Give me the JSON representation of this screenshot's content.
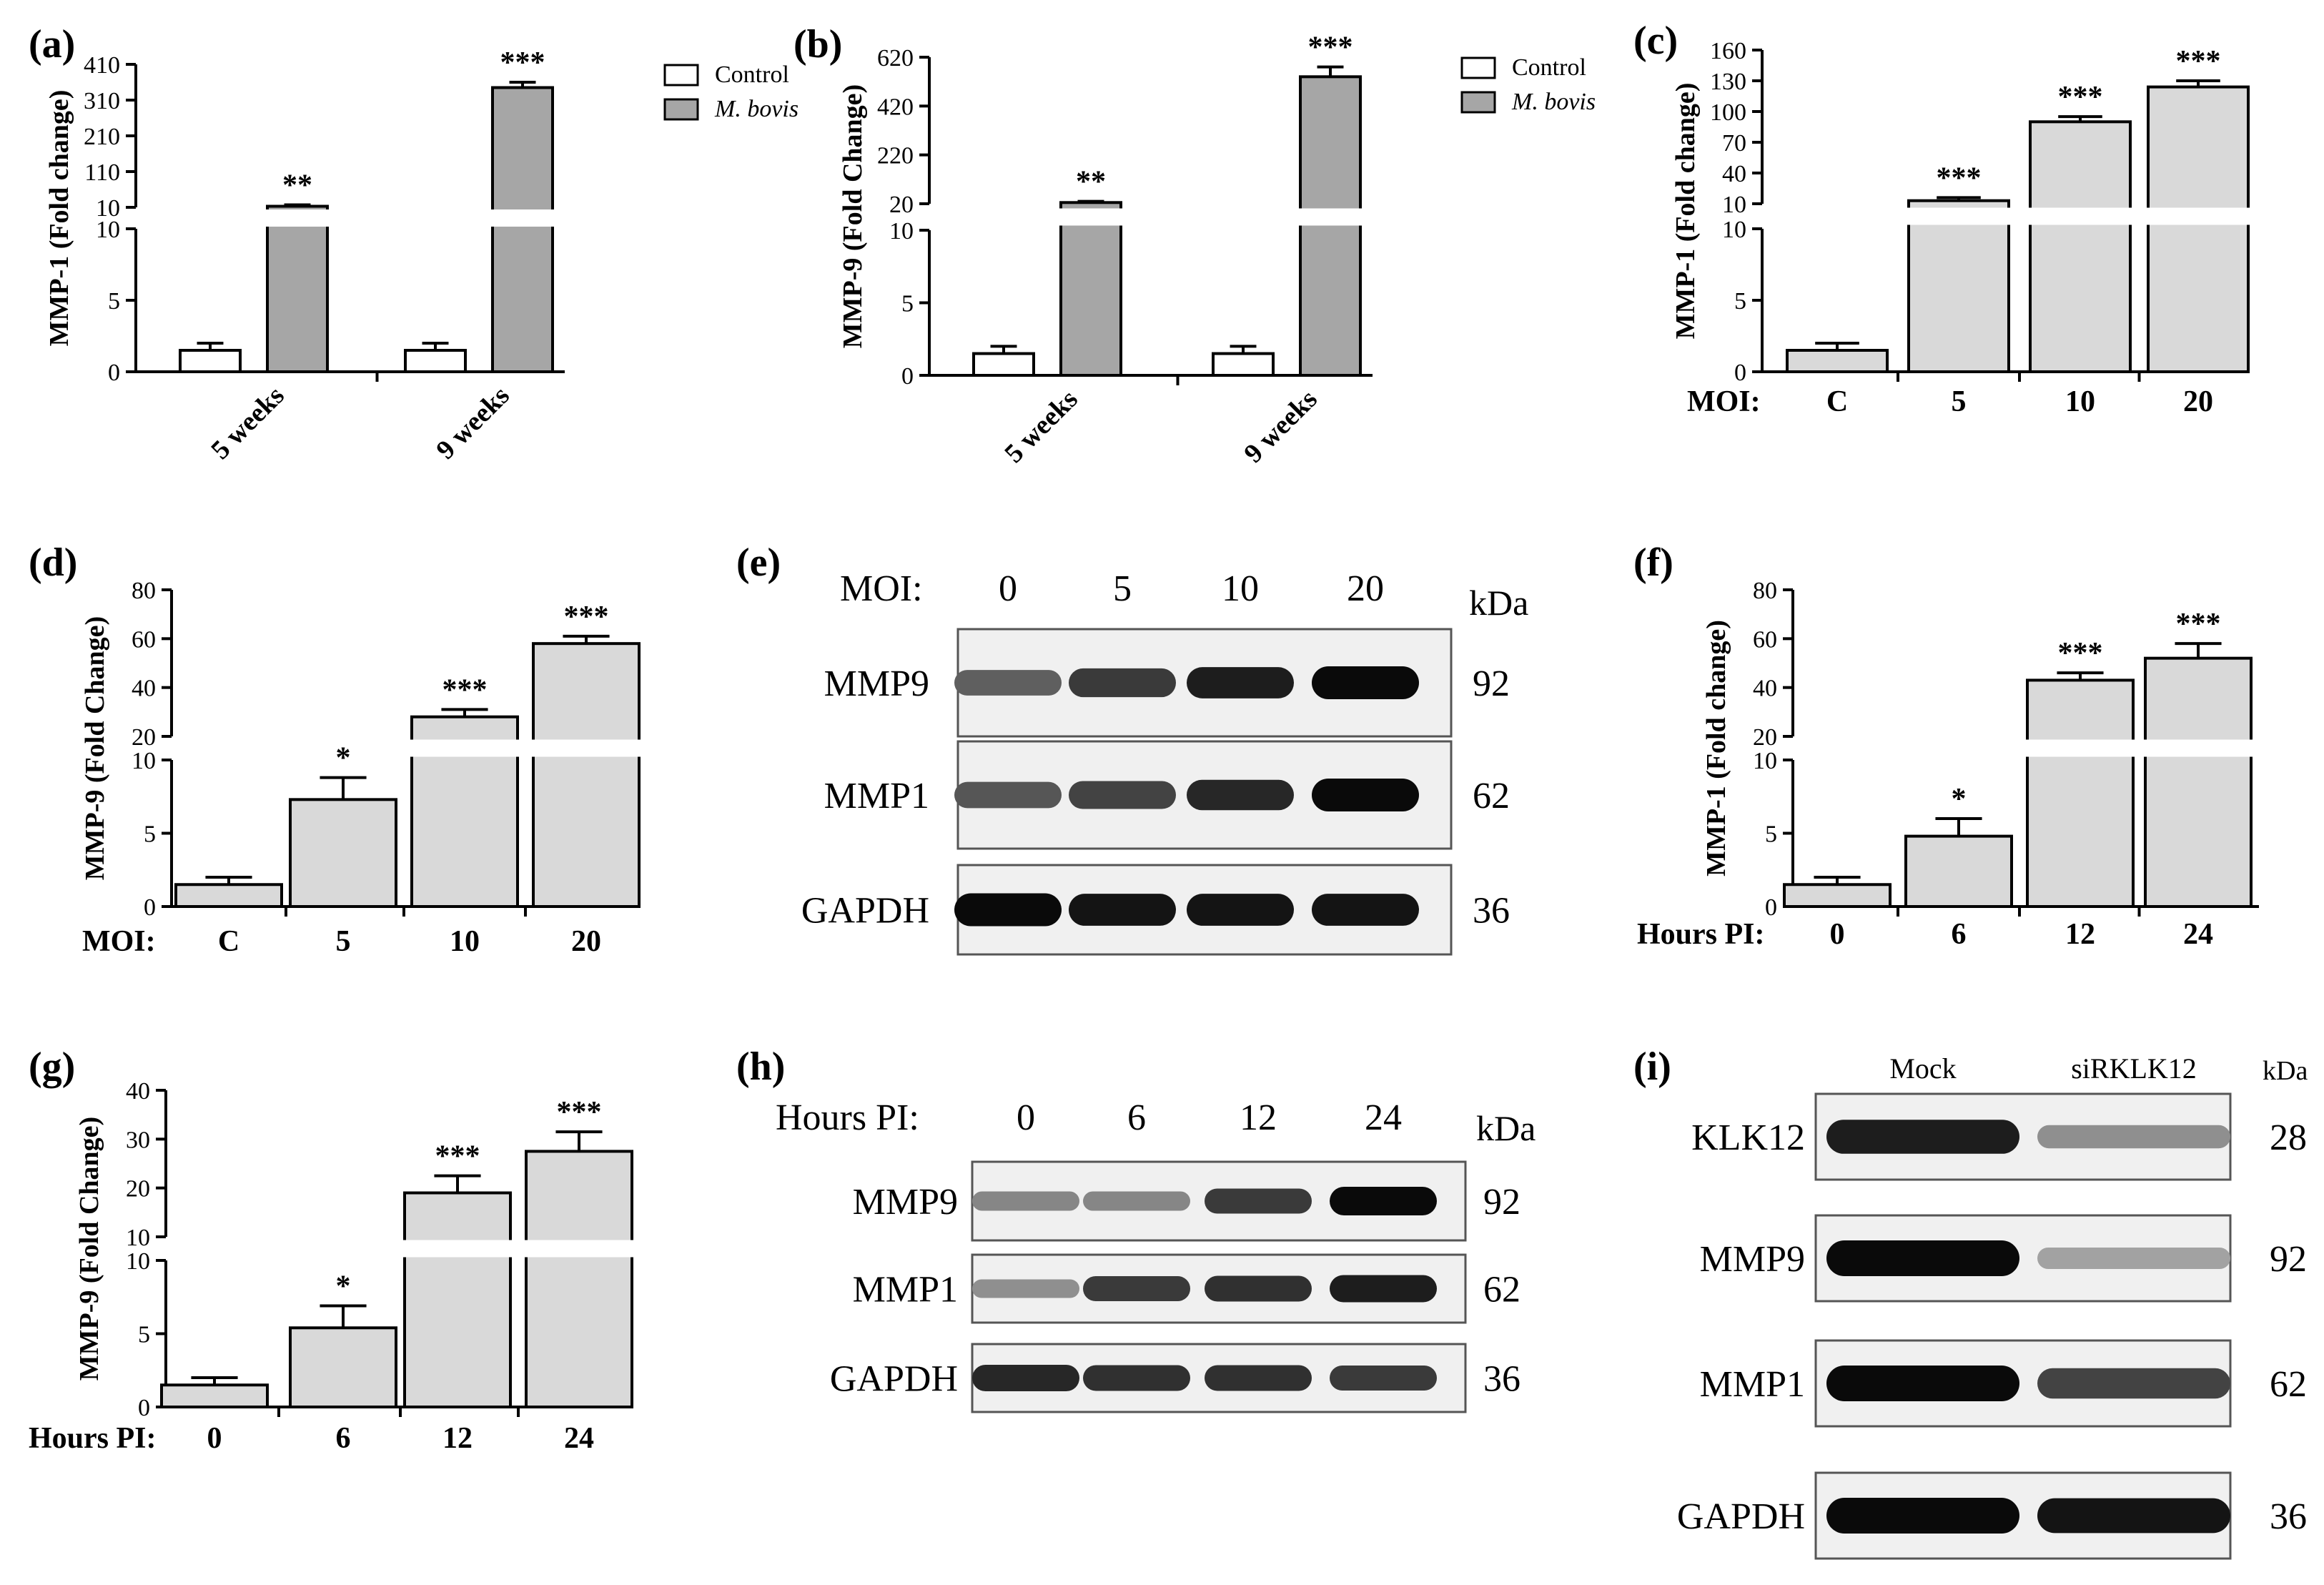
{
  "colors": {
    "control": "#ffffff",
    "treated": "#a6a6a6",
    "bars_light": "#d9d9d9",
    "axis": "#000000"
  },
  "panels": {
    "a": {
      "tag": "(a)",
      "legend": [
        "Control",
        "M. bovis"
      ]
    },
    "b": {
      "tag": "(b)",
      "legend": [
        "Control",
        "M. bovis"
      ]
    },
    "c": {
      "tag": "(c)",
      "row_label": "MOI:"
    },
    "d": {
      "tag": "(d)",
      "row_label": "MOI:"
    },
    "e": {
      "tag": "(e)",
      "header_label": "MOI:",
      "lanes": [
        "0",
        "5",
        "10",
        "20"
      ],
      "kda_label": "kDa",
      "blots": [
        {
          "name": "MMP9",
          "kda": "92"
        },
        {
          "name": "MMP1",
          "kda": "62"
        },
        {
          "name": "GAPDH",
          "kda": "36"
        }
      ]
    },
    "f": {
      "tag": "(f)",
      "row_label": "Hours PI:"
    },
    "g": {
      "tag": "(g)",
      "row_label": "Hours PI:"
    },
    "h": {
      "tag": "(h)",
      "header_label": "Hours PI:",
      "lanes": [
        "0",
        "6",
        "12",
        "24"
      ],
      "kda_label": "kDa",
      "blots": [
        {
          "name": "MMP9",
          "kda": "92"
        },
        {
          "name": "MMP1",
          "kda": "62"
        },
        {
          "name": "GAPDH",
          "kda": "36"
        }
      ]
    },
    "i": {
      "tag": "(i)",
      "lanes": [
        "Mock",
        "siRKLK12"
      ],
      "kda_label": "kDa",
      "blots": [
        {
          "name": "KLK12",
          "kda": "28"
        },
        {
          "name": "MMP9",
          "kda": "92"
        },
        {
          "name": "MMP1",
          "kda": "62"
        },
        {
          "name": "GAPDH",
          "kda": "36"
        }
      ]
    }
  },
  "chart_data": [
    {
      "panel": "a",
      "type": "bar",
      "ylabel": "MMP-1 (Fold change)",
      "categories": [
        "5 weeks",
        "9 weeks"
      ],
      "series": [
        {
          "name": "Control",
          "values": [
            1.5,
            1.5
          ],
          "errors": [
            0.5,
            0.5
          ]
        },
        {
          "name": "M. bovis",
          "values": [
            13,
            345
          ],
          "errors": [
            4,
            15
          ]
        }
      ],
      "significance": [
        "**",
        "***"
      ],
      "y_break": {
        "lower": [
          0,
          10
        ],
        "upper": [
          10,
          410
        ]
      },
      "yticks_lower": [
        "0",
        "5",
        "10"
      ],
      "yticks_upper": [
        "10",
        "110",
        "210",
        "310",
        "410"
      ]
    },
    {
      "panel": "b",
      "type": "bar",
      "ylabel": "MMP-9 (Fold Change)",
      "categories": [
        "5 weeks",
        "9 weeks"
      ],
      "series": [
        {
          "name": "Control",
          "values": [
            1.5,
            1.5
          ],
          "errors": [
            0.5,
            0.5
          ]
        },
        {
          "name": "M. bovis",
          "values": [
            25,
            540
          ],
          "errors": [
            5,
            40
          ]
        }
      ],
      "significance": [
        "**",
        "***"
      ],
      "y_break": {
        "lower": [
          0,
          10
        ],
        "upper": [
          20,
          620
        ]
      },
      "yticks_lower": [
        "0",
        "5",
        "10"
      ],
      "yticks_upper": [
        "20",
        "220",
        "420",
        "620"
      ]
    },
    {
      "panel": "c",
      "type": "bar",
      "ylabel": "MMP-1 (Fold change)",
      "categories": [
        "C",
        "5",
        "10",
        "20"
      ],
      "values": [
        1.5,
        13,
        90,
        124
      ],
      "errors": [
        0.5,
        3,
        5,
        6
      ],
      "significance": [
        "",
        "***",
        "***",
        "***"
      ],
      "y_break": {
        "lower": [
          0,
          10
        ],
        "upper": [
          10,
          160
        ]
      },
      "yticks_lower": [
        "0",
        "5",
        "10"
      ],
      "yticks_upper": [
        "10",
        "40",
        "70",
        "100",
        "130",
        "160"
      ]
    },
    {
      "panel": "d",
      "type": "bar",
      "ylabel": "MMP-9 (Fold Change)",
      "categories": [
        "C",
        "5",
        "10",
        "20"
      ],
      "values": [
        1.5,
        7.3,
        28,
        58
      ],
      "errors": [
        0.5,
        1.5,
        3,
        3
      ],
      "significance": [
        "",
        "*",
        "***",
        "***"
      ],
      "y_break": {
        "lower": [
          0,
          10
        ],
        "upper": [
          20,
          80
        ]
      },
      "yticks_lower": [
        "0",
        "5",
        "10"
      ],
      "yticks_upper": [
        "20",
        "40",
        "60",
        "80"
      ]
    },
    {
      "panel": "f",
      "type": "bar",
      "ylabel": "MMP-1 (Fold change)",
      "categories": [
        "0",
        "6",
        "12",
        "24"
      ],
      "values": [
        1.5,
        4.8,
        43,
        52
      ],
      "errors": [
        0.5,
        1.2,
        3,
        6
      ],
      "significance": [
        "",
        "*",
        "***",
        "***"
      ],
      "y_break": {
        "lower": [
          0,
          10
        ],
        "upper": [
          20,
          80
        ]
      },
      "yticks_lower": [
        "0",
        "5",
        "10"
      ],
      "yticks_upper": [
        "20",
        "40",
        "60",
        "80"
      ]
    },
    {
      "panel": "g",
      "type": "bar",
      "ylabel": "MMP-9 (Fold Change)",
      "categories": [
        "0",
        "6",
        "12",
        "24"
      ],
      "values": [
        1.5,
        5.4,
        19,
        27.5
      ],
      "errors": [
        0.5,
        1.5,
        3.5,
        4
      ],
      "significance": [
        "",
        "*",
        "***",
        "***"
      ],
      "y_break": {
        "lower": [
          0,
          10
        ],
        "upper": [
          10,
          40
        ]
      },
      "yticks_lower": [
        "0",
        "5",
        "10"
      ],
      "yticks_upper": [
        "10",
        "20",
        "30",
        "40"
      ]
    }
  ],
  "blot_intensity": {
    "e": {
      "MMP9": [
        0.55,
        0.75,
        0.9,
        1.0
      ],
      "MMP1": [
        0.6,
        0.7,
        0.85,
        1.0
      ],
      "GAPDH": [
        1.0,
        0.95,
        0.95,
        0.95
      ]
    },
    "h": {
      "MMP9": [
        0.35,
        0.35,
        0.75,
        1.0
      ],
      "MMP1": [
        0.3,
        0.75,
        0.8,
        0.9
      ],
      "GAPDH": [
        0.85,
        0.8,
        0.8,
        0.75
      ]
    },
    "i": {
      "KLK12": [
        0.9,
        0.3
      ],
      "MMP9": [
        1.0,
        0.2
      ],
      "MMP1": [
        1.0,
        0.7
      ],
      "GAPDH": [
        1.0,
        0.95
      ]
    }
  }
}
